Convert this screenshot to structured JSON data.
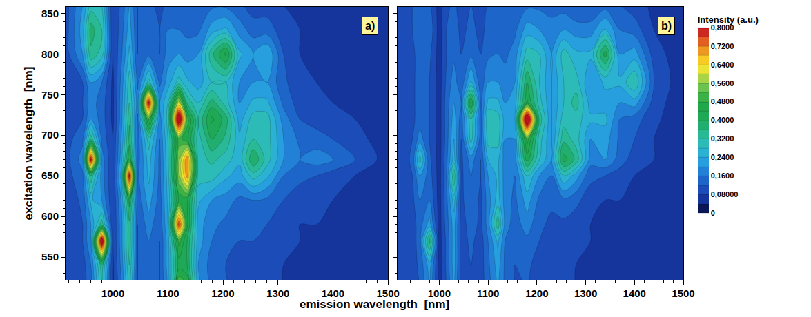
{
  "chart_data": [
    {
      "type": "contour",
      "panel_label": "a)",
      "xlabel": "emission wavelength  [nm]",
      "ylabel": "excitation wavelength  [nm]",
      "x": [
        914,
        945,
        960,
        980,
        1000,
        1015,
        1030,
        1045,
        1065,
        1085,
        1100,
        1120,
        1135,
        1155,
        1180,
        1205,
        1230,
        1255,
        1280,
        1310,
        1340,
        1370,
        1400,
        1440,
        1500
      ],
      "y": [
        510,
        540,
        570,
        590,
        620,
        650,
        670,
        695,
        720,
        740,
        765,
        800,
        830,
        860
      ],
      "z": [
        [
          0.08,
          0.1,
          0.14,
          0.32,
          0.07,
          0.15,
          0.28,
          0.12,
          0.15,
          0.12,
          0.2,
          0.55,
          0.5,
          0.22,
          0.15,
          0.13,
          0.1,
          0.1,
          0.1,
          0.08,
          0.08,
          0.07,
          0.07,
          0.06,
          0.05
        ],
        [
          0.08,
          0.1,
          0.16,
          0.35,
          0.07,
          0.17,
          0.32,
          0.12,
          0.14,
          0.12,
          0.22,
          0.42,
          0.4,
          0.2,
          0.14,
          0.12,
          0.1,
          0.1,
          0.1,
          0.08,
          0.08,
          0.07,
          0.07,
          0.06,
          0.05
        ],
        [
          0.08,
          0.12,
          0.2,
          0.88,
          0.08,
          0.18,
          0.35,
          0.12,
          0.16,
          0.12,
          0.22,
          0.5,
          0.4,
          0.22,
          0.16,
          0.13,
          0.12,
          0.12,
          0.11,
          0.09,
          0.08,
          0.07,
          0.07,
          0.06,
          0.05
        ],
        [
          0.08,
          0.12,
          0.2,
          0.35,
          0.08,
          0.18,
          0.35,
          0.12,
          0.18,
          0.13,
          0.24,
          0.78,
          0.45,
          0.22,
          0.17,
          0.15,
          0.13,
          0.13,
          0.12,
          0.1,
          0.08,
          0.08,
          0.07,
          0.06,
          0.05
        ],
        [
          0.09,
          0.13,
          0.25,
          0.2,
          0.08,
          0.2,
          0.42,
          0.13,
          0.22,
          0.14,
          0.25,
          0.45,
          0.45,
          0.25,
          0.2,
          0.18,
          0.15,
          0.16,
          0.15,
          0.12,
          0.1,
          0.09,
          0.08,
          0.07,
          0.05
        ],
        [
          0.1,
          0.15,
          0.35,
          0.18,
          0.08,
          0.25,
          0.82,
          0.15,
          0.25,
          0.15,
          0.26,
          0.55,
          0.7,
          0.3,
          0.3,
          0.25,
          0.22,
          0.3,
          0.25,
          0.16,
          0.13,
          0.12,
          0.1,
          0.08,
          0.05
        ],
        [
          0.1,
          0.18,
          0.82,
          0.18,
          0.08,
          0.22,
          0.45,
          0.14,
          0.26,
          0.15,
          0.27,
          0.55,
          0.72,
          0.3,
          0.33,
          0.3,
          0.25,
          0.4,
          0.3,
          0.2,
          0.16,
          0.18,
          0.16,
          0.12,
          0.06
        ],
        [
          0.1,
          0.15,
          0.35,
          0.15,
          0.08,
          0.2,
          0.38,
          0.14,
          0.3,
          0.16,
          0.28,
          0.5,
          0.45,
          0.3,
          0.4,
          0.35,
          0.25,
          0.32,
          0.3,
          0.2,
          0.15,
          0.14,
          0.12,
          0.1,
          0.05
        ],
        [
          0.09,
          0.12,
          0.2,
          0.14,
          0.07,
          0.18,
          0.35,
          0.15,
          0.5,
          0.18,
          0.3,
          0.9,
          0.5,
          0.32,
          0.45,
          0.38,
          0.22,
          0.3,
          0.3,
          0.18,
          0.12,
          0.1,
          0.09,
          0.08,
          0.05
        ],
        [
          0.09,
          0.12,
          0.18,
          0.14,
          0.07,
          0.18,
          0.32,
          0.18,
          0.82,
          0.2,
          0.28,
          0.6,
          0.35,
          0.28,
          0.38,
          0.3,
          0.2,
          0.25,
          0.25,
          0.15,
          0.1,
          0.09,
          0.08,
          0.07,
          0.05
        ],
        [
          0.09,
          0.12,
          0.2,
          0.16,
          0.07,
          0.17,
          0.3,
          0.15,
          0.3,
          0.15,
          0.22,
          0.3,
          0.25,
          0.22,
          0.28,
          0.28,
          0.2,
          0.2,
          0.2,
          0.13,
          0.09,
          0.08,
          0.07,
          0.06,
          0.05
        ],
        [
          0.1,
          0.2,
          0.35,
          0.3,
          0.08,
          0.15,
          0.25,
          0.12,
          0.15,
          0.12,
          0.18,
          0.2,
          0.18,
          0.2,
          0.35,
          0.45,
          0.25,
          0.2,
          0.24,
          0.12,
          0.08,
          0.07,
          0.07,
          0.06,
          0.05
        ],
        [
          0.1,
          0.22,
          0.38,
          0.32,
          0.08,
          0.14,
          0.22,
          0.12,
          0.15,
          0.12,
          0.16,
          0.16,
          0.15,
          0.15,
          0.22,
          0.25,
          0.18,
          0.14,
          0.14,
          0.1,
          0.08,
          0.07,
          0.06,
          0.06,
          0.05
        ],
        [
          0.1,
          0.2,
          0.3,
          0.28,
          0.08,
          0.13,
          0.2,
          0.12,
          0.14,
          0.1,
          0.14,
          0.14,
          0.13,
          0.13,
          0.15,
          0.15,
          0.13,
          0.1,
          0.1,
          0.08,
          0.07,
          0.06,
          0.06,
          0.05,
          0.05
        ]
      ],
      "xlim": [
        914,
        1500
      ],
      "ylim": [
        522,
        858
      ],
      "xticks": [
        1000,
        1100,
        1200,
        1300,
        1400,
        1500
      ],
      "yticks": [
        550,
        600,
        650,
        700,
        750,
        800,
        850
      ]
    },
    {
      "type": "contour",
      "panel_label": "b)",
      "tick_labels": "x",
      "x": [
        914,
        945,
        960,
        980,
        1000,
        1015,
        1030,
        1045,
        1065,
        1085,
        1100,
        1120,
        1135,
        1155,
        1180,
        1205,
        1230,
        1255,
        1280,
        1310,
        1340,
        1370,
        1400,
        1440,
        1500
      ],
      "y": [
        510,
        540,
        570,
        590,
        620,
        650,
        670,
        695,
        720,
        740,
        765,
        800,
        830,
        860
      ],
      "z": [
        [
          0.08,
          0.1,
          0.12,
          0.2,
          0.06,
          0.12,
          0.2,
          0.1,
          0.12,
          0.1,
          0.14,
          0.2,
          0.15,
          0.12,
          0.12,
          0.1,
          0.09,
          0.09,
          0.08,
          0.08,
          0.07,
          0.07,
          0.06,
          0.06,
          0.05
        ],
        [
          0.08,
          0.1,
          0.13,
          0.22,
          0.06,
          0.13,
          0.22,
          0.1,
          0.12,
          0.1,
          0.15,
          0.22,
          0.15,
          0.12,
          0.13,
          0.1,
          0.09,
          0.09,
          0.08,
          0.08,
          0.07,
          0.07,
          0.06,
          0.06,
          0.05
        ],
        [
          0.08,
          0.1,
          0.14,
          0.38,
          0.06,
          0.13,
          0.22,
          0.1,
          0.13,
          0.1,
          0.16,
          0.25,
          0.16,
          0.13,
          0.15,
          0.12,
          0.1,
          0.1,
          0.09,
          0.08,
          0.07,
          0.07,
          0.06,
          0.06,
          0.05
        ],
        [
          0.08,
          0.1,
          0.14,
          0.22,
          0.06,
          0.14,
          0.22,
          0.1,
          0.14,
          0.11,
          0.18,
          0.35,
          0.18,
          0.14,
          0.18,
          0.13,
          0.11,
          0.11,
          0.1,
          0.08,
          0.07,
          0.07,
          0.06,
          0.06,
          0.05
        ],
        [
          0.08,
          0.11,
          0.16,
          0.16,
          0.06,
          0.15,
          0.26,
          0.11,
          0.15,
          0.11,
          0.18,
          0.26,
          0.18,
          0.15,
          0.22,
          0.15,
          0.13,
          0.15,
          0.13,
          0.1,
          0.08,
          0.08,
          0.07,
          0.06,
          0.05
        ],
        [
          0.08,
          0.12,
          0.2,
          0.14,
          0.06,
          0.16,
          0.36,
          0.11,
          0.16,
          0.12,
          0.2,
          0.25,
          0.18,
          0.16,
          0.28,
          0.2,
          0.16,
          0.28,
          0.22,
          0.13,
          0.12,
          0.1,
          0.08,
          0.07,
          0.05
        ],
        [
          0.08,
          0.13,
          0.3,
          0.13,
          0.06,
          0.15,
          0.26,
          0.11,
          0.18,
          0.12,
          0.24,
          0.25,
          0.18,
          0.18,
          0.42,
          0.28,
          0.2,
          0.42,
          0.35,
          0.18,
          0.2,
          0.14,
          0.1,
          0.08,
          0.05
        ],
        [
          0.08,
          0.12,
          0.18,
          0.12,
          0.06,
          0.14,
          0.24,
          0.12,
          0.3,
          0.14,
          0.3,
          0.3,
          0.2,
          0.2,
          0.5,
          0.3,
          0.2,
          0.35,
          0.3,
          0.2,
          0.22,
          0.15,
          0.12,
          0.08,
          0.05
        ],
        [
          0.08,
          0.11,
          0.14,
          0.12,
          0.06,
          0.14,
          0.22,
          0.14,
          0.32,
          0.14,
          0.32,
          0.3,
          0.22,
          0.24,
          0.92,
          0.35,
          0.2,
          0.3,
          0.3,
          0.25,
          0.25,
          0.16,
          0.14,
          0.09,
          0.05
        ],
        [
          0.08,
          0.11,
          0.14,
          0.12,
          0.06,
          0.14,
          0.2,
          0.16,
          0.45,
          0.15,
          0.25,
          0.25,
          0.2,
          0.22,
          0.45,
          0.3,
          0.2,
          0.28,
          0.34,
          0.22,
          0.22,
          0.2,
          0.22,
          0.1,
          0.05
        ],
        [
          0.08,
          0.11,
          0.14,
          0.12,
          0.06,
          0.13,
          0.18,
          0.13,
          0.25,
          0.13,
          0.2,
          0.2,
          0.18,
          0.2,
          0.4,
          0.28,
          0.2,
          0.28,
          0.3,
          0.2,
          0.25,
          0.25,
          0.32,
          0.12,
          0.05
        ],
        [
          0.08,
          0.11,
          0.14,
          0.13,
          0.06,
          0.12,
          0.15,
          0.12,
          0.15,
          0.12,
          0.15,
          0.16,
          0.15,
          0.18,
          0.3,
          0.28,
          0.2,
          0.3,
          0.25,
          0.25,
          0.42,
          0.2,
          0.22,
          0.1,
          0.05
        ],
        [
          0.08,
          0.12,
          0.15,
          0.15,
          0.06,
          0.12,
          0.14,
          0.11,
          0.13,
          0.11,
          0.13,
          0.14,
          0.13,
          0.15,
          0.22,
          0.2,
          0.18,
          0.2,
          0.18,
          0.18,
          0.25,
          0.16,
          0.14,
          0.08,
          0.05
        ],
        [
          0.08,
          0.12,
          0.14,
          0.13,
          0.06,
          0.11,
          0.13,
          0.1,
          0.12,
          0.1,
          0.12,
          0.12,
          0.12,
          0.13,
          0.15,
          0.15,
          0.14,
          0.14,
          0.12,
          0.12,
          0.14,
          0.12,
          0.1,
          0.07,
          0.05
        ]
      ],
      "xlim": [
        914,
        1500
      ],
      "ylim": [
        522,
        858
      ],
      "xticks": [
        1000,
        1100,
        1200,
        1300,
        1400,
        1500
      ],
      "yticks": [
        550,
        600,
        650,
        700,
        750,
        800,
        850
      ],
      "colorbar": {
        "title": "Intensity (a.u.)",
        "range": [
          0,
          0.8
        ],
        "ticks": [
          {
            "value": 0.8,
            "label": "0,8000"
          },
          {
            "value": 0.72,
            "label": "0,7200"
          },
          {
            "value": 0.64,
            "label": "0,6400"
          },
          {
            "value": 0.56,
            "label": "0,5600"
          },
          {
            "value": 0.48,
            "label": "0,4800"
          },
          {
            "value": 0.4,
            "label": "0,4000"
          },
          {
            "value": 0.32,
            "label": "0,3200"
          },
          {
            "value": 0.24,
            "label": "0,2400"
          },
          {
            "value": 0.16,
            "label": "0,1600"
          },
          {
            "value": 0.08,
            "label": "0,08000"
          },
          0
        ]
      }
    }
  ]
}
